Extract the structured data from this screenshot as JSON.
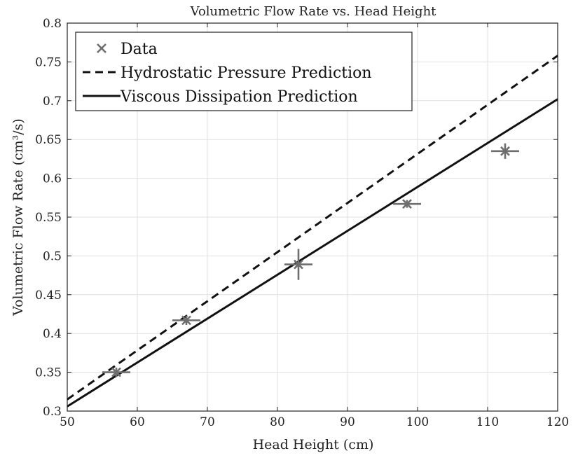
{
  "chart_data": {
    "type": "scatter",
    "title": "Volumetric Flow Rate vs. Head Height",
    "xlabel": "Head Height (cm)",
    "ylabel": "Volumetric Flow Rate (cm³/s)",
    "xlim": [
      50,
      120
    ],
    "ylim": [
      0.3,
      0.8
    ],
    "xticks": [
      50,
      60,
      70,
      80,
      90,
      100,
      110,
      120
    ],
    "yticks": [
      0.3,
      0.35,
      0.4,
      0.45,
      0.5,
      0.55,
      0.6,
      0.65,
      0.7,
      0.75,
      0.8
    ],
    "xtick_labels": [
      "50",
      "60",
      "70",
      "80",
      "90",
      "100",
      "110",
      "120"
    ],
    "ytick_labels": [
      "0.3",
      "0.35",
      "0.4",
      "0.45",
      "0.5",
      "0.55",
      "0.6",
      "0.65",
      "0.7",
      "0.75",
      "0.8"
    ],
    "grid": true,
    "legend_position": "top-left",
    "series": [
      {
        "name": "Data",
        "kind": "scatter-errorbar",
        "color": "#6e6e6e",
        "points": [
          {
            "x": 57,
            "y": 0.35,
            "xerr": 2.0,
            "yerr": 0.006
          },
          {
            "x": 67,
            "y": 0.417,
            "xerr": 2.0,
            "yerr": 0.006
          },
          {
            "x": 83,
            "y": 0.489,
            "xerr": 2.0,
            "yerr": 0.02
          },
          {
            "x": 98.5,
            "y": 0.567,
            "xerr": 2.0,
            "yerr": 0.005
          },
          {
            "x": 112.5,
            "y": 0.635,
            "xerr": 2.0,
            "yerr": 0.01
          }
        ]
      },
      {
        "name": "Hydrostatic Pressure Prediction",
        "kind": "line-dashed",
        "color": "#111111",
        "x": [
          50,
          120
        ],
        "y": [
          0.315,
          0.758
        ]
      },
      {
        "name": "Viscous Dissipation Prediction",
        "kind": "line-solid",
        "color": "#111111",
        "x": [
          50,
          120
        ],
        "y": [
          0.306,
          0.702
        ]
      }
    ]
  }
}
